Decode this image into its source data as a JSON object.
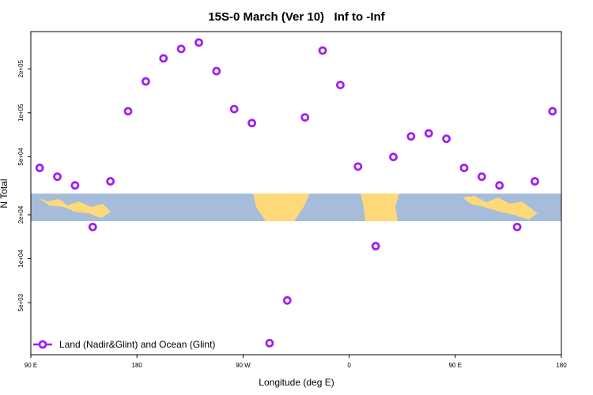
{
  "chart_data": {
    "type": "scatter",
    "title": "15S-0 March (Ver 10)   Inf to -Inf",
    "xlabel": "Longitude (deg E)",
    "ylabel": "N Total",
    "xlim": [
      90,
      540
    ],
    "ylim": [
      2200,
      360000
    ],
    "log_y": true,
    "xticks": [
      {
        "value": 90,
        "label": "90 E"
      },
      180,
      {
        "value": 270,
        "label": "90 W"
      },
      {
        "value": 360,
        "label": "0"
      },
      {
        "value": 450,
        "label": "90 E"
      },
      {
        "value": 540,
        "label": "180"
      }
    ],
    "yticks": [
      {
        "value": 5000,
        "label": "5e+03"
      },
      {
        "value": 10000,
        "label": "1e+04"
      },
      {
        "value": 20000,
        "label": "2e+04"
      },
      {
        "value": 50000,
        "label": "5e+04"
      },
      {
        "value": 100000,
        "label": "1e+05"
      },
      {
        "value": 200000,
        "label": "2e+05"
      }
    ],
    "legend": "bottom-left",
    "series": [
      {
        "name": "Land (Nadir&Glint) and Ocean (Glint)",
        "color": "#a020f0",
        "x": [
          97.5,
          112.5,
          127.5,
          142.5,
          157.5,
          172.5,
          187.5,
          202.5,
          217.5,
          232.5,
          247.5,
          262.5,
          277.5,
          292.5,
          307.5,
          322.5,
          337.5,
          352.5,
          367.5,
          382.5,
          397.5,
          412.5,
          427.5,
          442.5,
          457.5,
          472.5,
          487.5,
          502.5,
          517.5,
          532.5
        ],
        "values": [
          41900,
          36500,
          31800,
          16500,
          33900,
          102500,
          164000,
          236000,
          274000,
          303000,
          193000,
          106000,
          85000,
          2640,
          5180,
          93000,
          267000,
          155000,
          42800,
          12200,
          49800,
          68900,
          72300,
          66400,
          41900,
          36500,
          31800,
          16500,
          33900,
          102500
        ]
      }
    ]
  }
}
